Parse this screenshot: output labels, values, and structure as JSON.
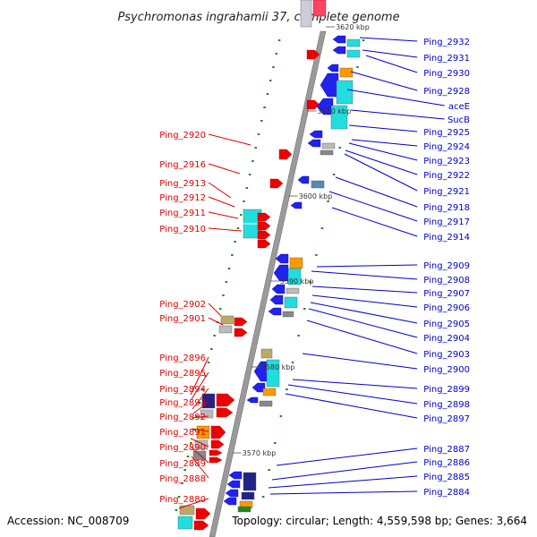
{
  "title": "Psychromonas ingrahamii 37, complete genome",
  "accession": "Accession: NC_008709",
  "topology": "Topology: circular; Length: 4,559,598 bp; Genes: 3,664",
  "colors": {
    "forward_label": "#e00000",
    "reverse_label": "#0000cc",
    "backbone": "#999999",
    "forward_arrow": "#ee0000",
    "reverse_arrow": "#2222ee",
    "cog_cyan": "#22dddd",
    "cog_orange": "#ff9900",
    "cog_navy": "#222288",
    "cog_khaki": "#bbaa66",
    "cog_gray": "#888888",
    "cog_green": "#228822"
  },
  "kbp_ticks": [
    "3620 kbp",
    "3610 kbp",
    "3600 kbp",
    "3590 kbp",
    "3580 kbp",
    "3570 kbp"
  ],
  "left_labels": [
    "Ping_2920",
    "Ping_2916",
    "Ping_2913",
    "Ping_2912",
    "Ping_2911",
    "Ping_2910",
    "Ping_2902",
    "Ping_2901",
    "Ping_2896",
    "Ping_2895",
    "Ping_2894",
    "Ping_2893",
    "Ping_2892",
    "Ping_2891",
    "Ping_2890",
    "Ping_2889",
    "Ping_2888",
    "Ping_2880"
  ],
  "right_labels": [
    "Ping_2932",
    "Ping_2931",
    "Ping_2930",
    "Ping_2928",
    "aceE",
    "SucB",
    "Ping_2925",
    "Ping_2924",
    "Ping_2923",
    "Ping_2922",
    "Ping_2921",
    "Ping_2918",
    "Ping_2917",
    "Ping_2914",
    "Ping_2909",
    "Ping_2908",
    "Ping_2907",
    "Ping_2906",
    "Ping_2905",
    "Ping_2904",
    "Ping_2903",
    "Ping_2900",
    "Ping_2899",
    "Ping_2898",
    "Ping_2897",
    "Ping_2887",
    "Ping_2886",
    "Ping_2885",
    "Ping_2884"
  ]
}
